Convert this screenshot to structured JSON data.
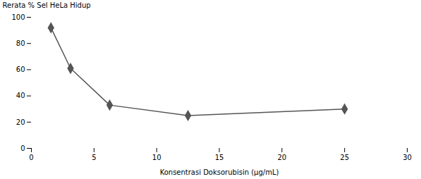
{
  "chart_data": {
    "type": "line",
    "x": [
      1.5625,
      3.125,
      6.25,
      12.5,
      25
    ],
    "values": [
      92,
      61,
      33,
      25,
      30
    ],
    "xlabel": "Konsentrasi Doksorubisin (µg/mL)",
    "ylabel": "Rerata % Sel HeLa Hidup",
    "xlim": [
      0,
      30
    ],
    "ylim": [
      0,
      100
    ],
    "xticks": [
      0,
      5,
      10,
      15,
      20,
      25,
      30
    ],
    "yticks": [
      0,
      20,
      40,
      60,
      80,
      100
    ],
    "color": "#555555",
    "marker": "diamond",
    "grid": false
  }
}
